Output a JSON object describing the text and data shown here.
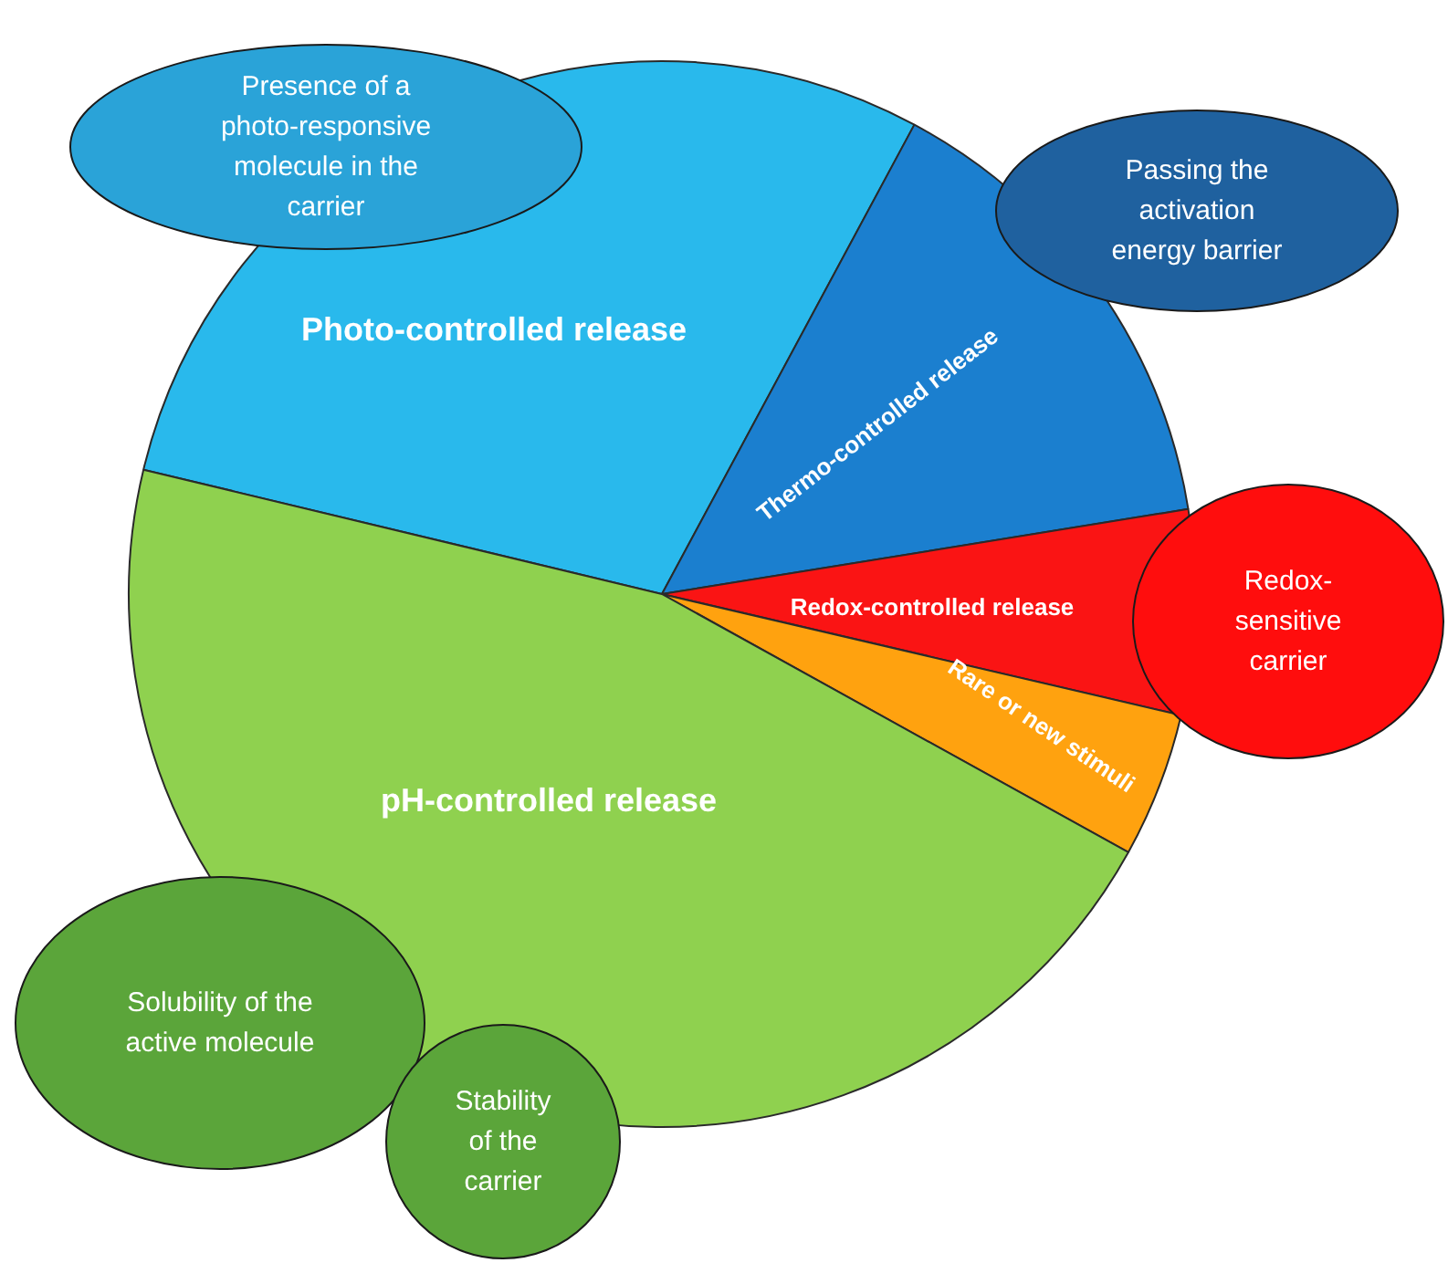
{
  "chart_data": {
    "type": "pie",
    "categories": [
      "Photo-controlled release",
      "Thermo-controlled release",
      "Redox-controlled release",
      "Rare or new stimuli",
      "pH-controlled release"
    ],
    "values": [
      29.1,
      14.6,
      6.2,
      4.4,
      45.7
    ],
    "colors": [
      "#29b9ec",
      "#1b7fcf",
      "#fa1414",
      "#ffa20f",
      "#8fd14f"
    ],
    "annotations": [
      "Presence of a photo-responsive molecule in the carrier",
      "Passing the activation energy barrier",
      "Redox-sensitive carrier",
      "Solubility of the active molecule",
      "Stability of the carrier"
    ]
  }
}
